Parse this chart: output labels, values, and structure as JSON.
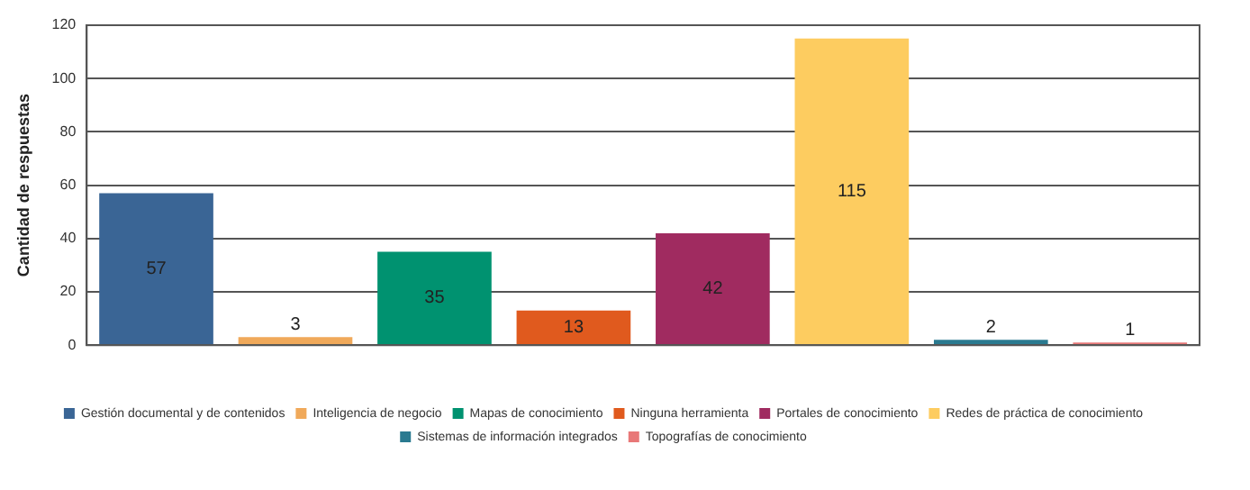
{
  "chart_data": {
    "type": "bar",
    "ylabel": "Cantidad de respuestas",
    "categories": [
      null,
      null,
      null,
      null,
      null,
      null,
      null,
      null
    ],
    "series": [
      {
        "name": "Gestión documental y de contenidos",
        "color": "#3a6595",
        "values": [
          57,
          null,
          null,
          null,
          null,
          null,
          null,
          null
        ]
      },
      {
        "name": "Inteligencia de negocio",
        "color": "#f0a95a",
        "values": [
          null,
          3,
          null,
          null,
          null,
          null,
          null,
          null
        ]
      },
      {
        "name": "Mapas de conocimiento",
        "color": "#009270",
        "values": [
          null,
          null,
          35,
          null,
          null,
          null,
          null,
          null
        ]
      },
      {
        "name": "Ninguna herramienta",
        "color": "#e05a1e",
        "values": [
          null,
          null,
          null,
          13,
          null,
          null,
          null,
          null
        ]
      },
      {
        "name": "Portales de conocimiento",
        "color": "#a02b60",
        "values": [
          null,
          null,
          null,
          null,
          42,
          null,
          null,
          null
        ]
      },
      {
        "name": "Redes de práctica de conocimiento",
        "color": "#fdcc60",
        "values": [
          null,
          null,
          null,
          null,
          null,
          115,
          null,
          null
        ]
      },
      {
        "name": "Sistemas de información integrados",
        "color": "#2a7a90",
        "values": [
          null,
          null,
          null,
          null,
          null,
          null,
          2,
          null
        ]
      },
      {
        "name": "Topografías de conocimiento",
        "color": "#e87878",
        "values": [
          null,
          null,
          null,
          null,
          null,
          null,
          null,
          1
        ]
      }
    ],
    "ylim": [
      0,
      120
    ],
    "yticks": [
      0,
      20,
      40,
      60,
      80,
      100,
      120
    ],
    "grid": "y",
    "legend": "bottom",
    "data_labels": true
  }
}
